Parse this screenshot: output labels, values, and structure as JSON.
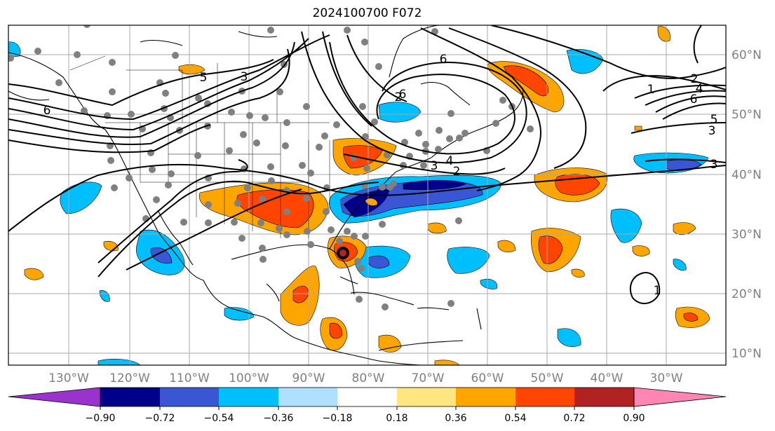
{
  "title": "2024100700 F072",
  "map": {
    "lon_labels": [
      "130°W",
      "120°W",
      "110°W",
      "100°W",
      "90°W",
      "80°W",
      "70°W",
      "60°W",
      "50°W",
      "40°W",
      "30°W"
    ],
    "lat_labels": [
      "60°N",
      "50°N",
      "40°N",
      "30°N",
      "20°N",
      "10°N"
    ],
    "contour_labels": [
      "5",
      "3",
      "6",
      "6",
      "2",
      "6",
      "3",
      "4",
      "2",
      "1",
      "2",
      "4",
      "6",
      "5",
      "3",
      "3",
      "1"
    ]
  },
  "colorbar": {
    "ticks": [
      "−0.90",
      "−0.72",
      "−0.54",
      "−0.36",
      "−0.18",
      "0.18",
      "0.36",
      "0.54",
      "0.72",
      "0.90"
    ],
    "colors": [
      "#9933cc",
      "#00008b",
      "#3a56d4",
      "#00bfff",
      "#b0e0ff",
      "#ffffff",
      "#ffe680",
      "#ffa500",
      "#ff4500",
      "#b22222",
      "#ff85b5"
    ]
  }
}
